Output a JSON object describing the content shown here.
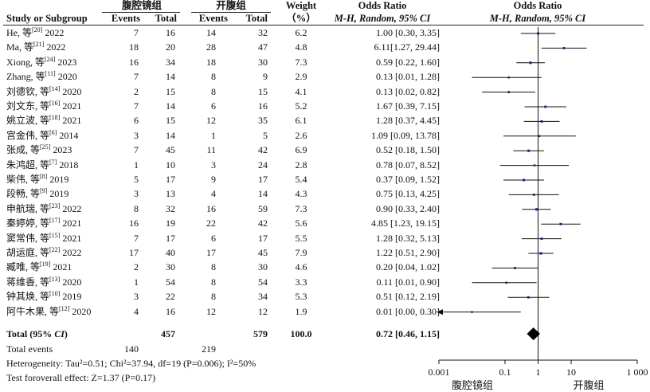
{
  "header": {
    "group_exp": "腹腔镜组",
    "group_ctrl": "开腹组",
    "study_col": "Study or Subgroup",
    "events": "Events",
    "total": "Total",
    "weight": "Weight",
    "weight_unit": "（%）",
    "or_title": "Odds Ratio",
    "or_method": "M-H, Random, 95% CI",
    "plot_title": "Odds Ratio",
    "plot_method": "M-H, Random, 95% CI"
  },
  "rows": [
    {
      "name": "He, 等",
      "ref": "[20]",
      "year": "2022",
      "e1": "7",
      "n1": "16",
      "e2": "14",
      "n2": "32",
      "w": "6.2",
      "ci": "1.00 [0.30, 3.35]"
    },
    {
      "name": "Ma, 等",
      "ref": "[21]",
      "year": "2022",
      "e1": "18",
      "n1": "20",
      "e2": "28",
      "n2": "47",
      "w": "4.8",
      "ci": "6.11[1.27, 29.44]"
    },
    {
      "name": "Xiong, 等",
      "ref": "[24]",
      "year": "2023",
      "e1": "16",
      "n1": "34",
      "e2": "18",
      "n2": "30",
      "w": "7.3",
      "ci": "0.59 [0.22, 1.60]"
    },
    {
      "name": "Zhang, 等",
      "ref": "[11]",
      "year": "2020",
      "e1": "7",
      "n1": "14",
      "e2": "8",
      "n2": "9",
      "w": "2.9",
      "ci": "0.13 [0.01, 1.28]"
    },
    {
      "name": "刘德钦, 等",
      "ref": "[14]",
      "year": "2020",
      "e1": "2",
      "n1": "15",
      "e2": "8",
      "n2": "15",
      "w": "4.1",
      "ci": "0.13 [0.02, 0.82]"
    },
    {
      "name": "刘文东, 等",
      "ref": "[16]",
      "year": "2021",
      "e1": "7",
      "n1": "14",
      "e2": "6",
      "n2": "16",
      "w": "5.2",
      "ci": "1.67 [0.39, 7.15]"
    },
    {
      "name": "姚立波, 等",
      "ref": "[18]",
      "year": "2021",
      "e1": "6",
      "n1": "15",
      "e2": "12",
      "n2": "35",
      "w": "6.1",
      "ci": "1.28 [0.37, 4.45]"
    },
    {
      "name": "宫金伟, 等",
      "ref": "[6]",
      "year": "2014",
      "e1": "3",
      "n1": "14",
      "e2": "1",
      "n2": "5",
      "w": "2.6",
      "ci": "1.09 [0.09, 13.78]"
    },
    {
      "name": "张成, 等",
      "ref": "[25]",
      "year": "2023",
      "e1": "7",
      "n1": "45",
      "e2": "11",
      "n2": "42",
      "w": "6.9",
      "ci": "0.52 [0.18, 1.50]"
    },
    {
      "name": "朱鸿超, 等",
      "ref": "[7]",
      "year": "2018",
      "e1": "1",
      "n1": "10",
      "e2": "3",
      "n2": "24",
      "w": "2.8",
      "ci": "0.78 [0.07, 8.52]"
    },
    {
      "name": "柴伟, 等",
      "ref": "[8]",
      "year": "2019",
      "e1": "5",
      "n1": "17",
      "e2": "9",
      "n2": "17",
      "w": "5.4",
      "ci": "0.37 [0.09, 1.52]"
    },
    {
      "name": "段畅, 等",
      "ref": "[9]",
      "year": "2019",
      "e1": "3",
      "n1": "13",
      "e2": "4",
      "n2": "14",
      "w": "4.3",
      "ci": "0.75 [0.13, 4.25]"
    },
    {
      "name": "申航瑞, 等",
      "ref": "[23]",
      "year": "2022",
      "e1": "8",
      "n1": "32",
      "e2": "16",
      "n2": "59",
      "w": "7.3",
      "ci": "0.90 [0.33, 2.40]"
    },
    {
      "name": "秦婷婷, 等",
      "ref": "[17]",
      "year": "2021",
      "e1": "16",
      "n1": "19",
      "e2": "22",
      "n2": "42",
      "w": "5.6",
      "ci": "4.85 [1.23, 19.15]"
    },
    {
      "name": "窦常伟, 等",
      "ref": "[15]",
      "year": "2021",
      "e1": "7",
      "n1": "17",
      "e2": "6",
      "n2": "17",
      "w": "5.5",
      "ci": "1.28 [0.32, 5.13]"
    },
    {
      "name": "胡运庭, 等",
      "ref": "[22]",
      "year": "2022",
      "e1": "17",
      "n1": "40",
      "e2": "17",
      "n2": "45",
      "w": "7.9",
      "ci": "1.22 [0.51, 2.90]"
    },
    {
      "name": "臧唯, 等",
      "ref": "[19]",
      "year": "2021",
      "e1": "2",
      "n1": "30",
      "e2": "8",
      "n2": "30",
      "w": "4.6",
      "ci": "0.20 [0.04, 1.02]"
    },
    {
      "name": "蒋维香, 等",
      "ref": "[13]",
      "year": "2020",
      "e1": "1",
      "n1": "54",
      "e2": "8",
      "n2": "54",
      "w": "3.3",
      "ci": "0.11 [0.01, 0.90]"
    },
    {
      "name": "钟其焕, 等",
      "ref": "[10]",
      "year": "2019",
      "e1": "3",
      "n1": "22",
      "e2": "8",
      "n2": "34",
      "w": "5.3",
      "ci": "0.51 [0.12, 2.19]"
    },
    {
      "name": "阿牛木果, 等",
      "ref": "[12]",
      "year": "2020",
      "e1": "4",
      "n1": "16",
      "e2": "12",
      "n2": "12",
      "w": "1.9",
      "ci": "0.01 [0.00, 0.30]"
    }
  ],
  "total": {
    "label_pre": "Total (95% ",
    "label_ci": "CI",
    "label_post": ")",
    "n1": "457",
    "n2": "579",
    "w": "100.0",
    "ci": "0.72 [0.46, 1.15]",
    "events_label": "Total events",
    "e1": "140",
    "e2": "219"
  },
  "stats": {
    "heterogeneity": "Heterogeneity: Tau²=0.51; Chi²=37.94, df=19 (P=0.006); I²=50%",
    "overall": "Test foroverall effect: Z=1.37 (P=0.17)"
  },
  "axis": {
    "ticks": [
      "0.001",
      "0.1",
      "1",
      "10",
      "1 000"
    ],
    "favours_left": "腹腔镜组",
    "favours_right": "开腹组"
  },
  "chart_data": {
    "type": "scatter",
    "title": "Odds Ratio",
    "subtitle": "M-H, Random, 95% CI",
    "xscale": "log",
    "xlim": [
      0.001,
      1000
    ],
    "x_ticks": [
      0.001,
      0.1,
      1,
      10,
      1000
    ],
    "reference_line": 1,
    "studies": [
      "He 2022",
      "Ma 2022",
      "Xiong 2023",
      "Zhang 2020",
      "刘德钦 2020",
      "刘文东 2021",
      "姚立波 2021",
      "宫金伟 2014",
      "张成 2023",
      "朱鸿超 2018",
      "柴伟 2019",
      "段畅 2019",
      "申航瑞 2022",
      "秦婷婷 2021",
      "窦常伟 2021",
      "胡运庭 2022",
      "臧唯 2021",
      "蒋维香 2020",
      "钟其焕 2019",
      "阿牛木果 2020"
    ],
    "or": [
      1.0,
      6.11,
      0.59,
      0.13,
      0.13,
      1.67,
      1.28,
      1.09,
      0.52,
      0.78,
      0.37,
      0.75,
      0.9,
      4.85,
      1.28,
      1.22,
      0.2,
      0.11,
      0.51,
      0.01
    ],
    "lower": [
      0.3,
      1.27,
      0.22,
      0.01,
      0.02,
      0.39,
      0.37,
      0.09,
      0.18,
      0.07,
      0.09,
      0.13,
      0.33,
      1.23,
      0.32,
      0.51,
      0.04,
      0.01,
      0.12,
      0.0
    ],
    "upper": [
      3.35,
      29.44,
      1.6,
      1.28,
      0.82,
      7.15,
      4.45,
      13.78,
      1.5,
      8.52,
      1.52,
      4.25,
      2.4,
      19.15,
      5.13,
      2.9,
      1.02,
      0.9,
      2.19,
      0.3
    ],
    "weights": [
      6.2,
      4.8,
      7.3,
      2.9,
      4.1,
      5.2,
      6.1,
      2.6,
      6.9,
      2.8,
      5.4,
      4.3,
      7.3,
      5.6,
      5.5,
      7.9,
      4.6,
      3.3,
      5.3,
      1.9
    ],
    "pooled": {
      "or": 0.72,
      "lower": 0.46,
      "upper": 1.15
    },
    "favours": [
      "腹腔镜组",
      "开腹组"
    ],
    "colors": {
      "marker": "#1a237e",
      "line": "#111111"
    }
  }
}
